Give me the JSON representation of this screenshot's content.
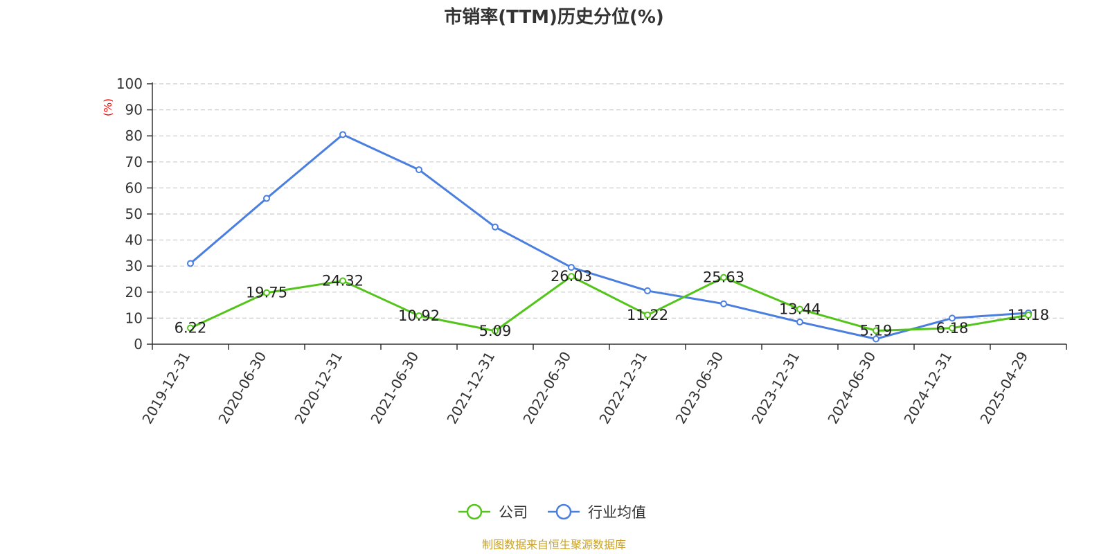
{
  "chart_data": {
    "type": "line",
    "title": "市销率(TTM)历史分位(%)",
    "ylabel": "(%)",
    "xlabel": "",
    "ylim": [
      0,
      100
    ],
    "yticks": [
      0,
      10,
      20,
      30,
      40,
      50,
      60,
      70,
      80,
      90,
      100
    ],
    "grid": true,
    "legend_position": "bottom",
    "categories": [
      "2019-12-31",
      "2020-06-30",
      "2020-12-31",
      "2021-06-30",
      "2021-12-31",
      "2022-06-30",
      "2022-12-31",
      "2023-06-30",
      "2023-12-31",
      "2024-06-30",
      "2024-12-31",
      "2025-04-29"
    ],
    "series": [
      {
        "name": "公司",
        "color": "#52c41a",
        "values": [
          6.22,
          19.75,
          24.32,
          10.92,
          5.09,
          26.03,
          11.22,
          25.63,
          13.44,
          5.19,
          6.18,
          11.18
        ],
        "labels": [
          "6.22",
          "19.75",
          "24.32",
          "10.92",
          "5.09",
          "26.03",
          "11.22",
          "25.63",
          "13.44",
          "5.19",
          "6.18",
          "11.18"
        ]
      },
      {
        "name": "行业均值",
        "color": "#4a7fdf",
        "values": [
          31.0,
          56.0,
          80.5,
          67.0,
          45.0,
          29.5,
          20.5,
          15.5,
          8.5,
          2.0,
          10.0,
          12.0
        ]
      }
    ]
  },
  "source_note": "制图数据来自恒生聚源数据库",
  "colors": {
    "axis": "#333333",
    "grid": "#cccccc",
    "ylabel": "#ff0000",
    "source": "#c9a227"
  }
}
